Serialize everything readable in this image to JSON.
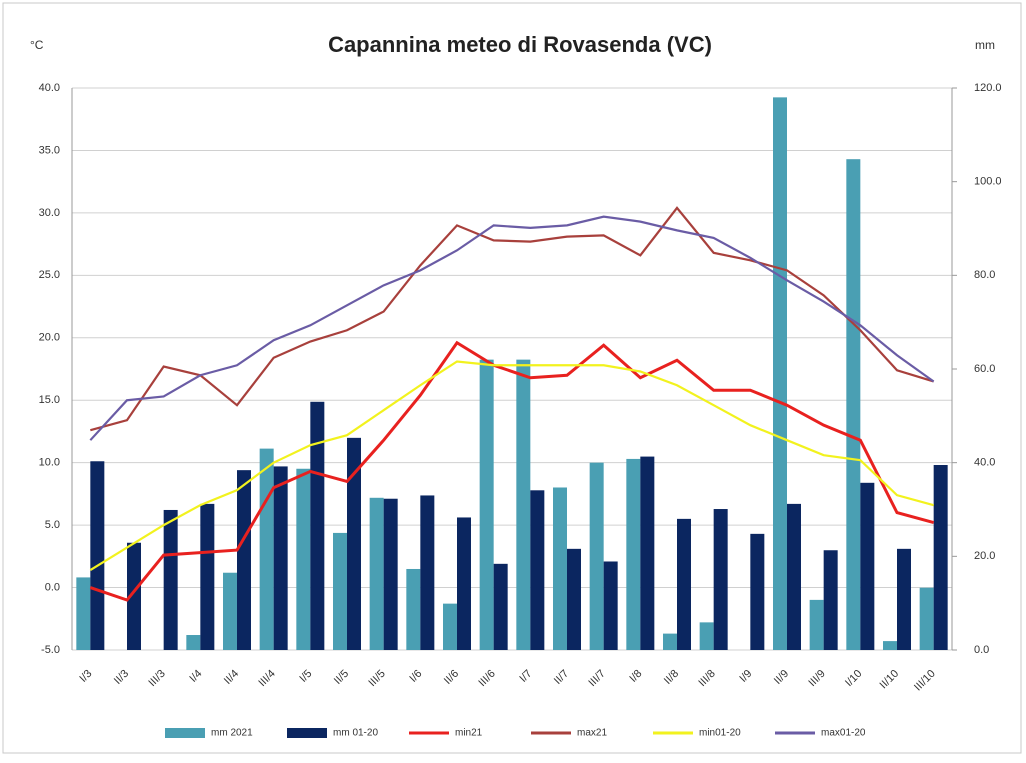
{
  "chart_data": {
    "type": "bar_line",
    "title": "Capannina meteo di Rovasenda (VC)",
    "y_unit": "°C",
    "y2_unit": "mm",
    "categories": [
      "I/3",
      "II/3",
      "III/3",
      "I/4",
      "II/4",
      "III/4",
      "I/5",
      "II/5",
      "III/5",
      "I/6",
      "II/6",
      "III/6",
      "I/7",
      "II/7",
      "III/7",
      "I/8",
      "II/8",
      "III/8",
      "I/9",
      "II/9",
      "III/9",
      "I/10",
      "II/10",
      "III/10"
    ],
    "ylim": [
      -5,
      40
    ],
    "yticks": [
      {
        "value": -5,
        "label": "-5.0"
      },
      {
        "value": 0,
        "label": "0.0"
      },
      {
        "value": 5,
        "label": "5.0"
      },
      {
        "value": 10,
        "label": "10.0"
      },
      {
        "value": 15,
        "label": "15.0"
      },
      {
        "value": 20,
        "label": "20.0"
      },
      {
        "value": 25,
        "label": "25.0"
      },
      {
        "value": 30,
        "label": "30.0"
      },
      {
        "value": 35,
        "label": "35.0"
      },
      {
        "value": 40,
        "label": "40.0"
      }
    ],
    "y2lim": [
      0,
      120
    ],
    "y2ticks": [
      {
        "value": 0,
        "label": "0.0"
      },
      {
        "value": 20,
        "label": "20.0"
      },
      {
        "value": 40,
        "label": "40.0"
      },
      {
        "value": 60,
        "label": "60.0"
      },
      {
        "value": 80,
        "label": "80.0"
      },
      {
        "value": 100,
        "label": "100.0"
      },
      {
        "value": 120,
        "label": "120.0"
      }
    ],
    "grid": true,
    "series": [
      {
        "name": "mm 2021",
        "kind": "bar",
        "axis": "y2",
        "color": "#4a9fb3",
        "values": [
          15.5,
          0,
          0,
          3.2,
          16.5,
          43,
          38.7,
          25,
          32.5,
          17.3,
          9.9,
          62,
          62,
          34.7,
          40,
          40.8,
          3.5,
          5.9,
          0,
          118,
          10.7,
          104.8,
          1.9,
          13.3
        ]
      },
      {
        "name": "mm 01-20",
        "kind": "bar",
        "axis": "y2",
        "color": "#0b2660",
        "values": [
          40.3,
          22.9,
          29.9,
          31.2,
          38.4,
          39.2,
          53,
          45.3,
          32.3,
          33,
          28.3,
          18.4,
          34.1,
          21.6,
          18.9,
          41.3,
          28,
          30.1,
          24.8,
          31.2,
          21.3,
          35.7,
          21.6,
          39.5
        ]
      },
      {
        "name": "min21",
        "kind": "line",
        "color": "#e8211f",
        "values": [
          0.0,
          -1.0,
          2.6,
          2.8,
          3.0,
          8.0,
          9.3,
          8.5,
          11.8,
          15.4,
          19.6,
          17.8,
          16.8,
          17.0,
          19.4,
          16.8,
          18.2,
          15.8,
          15.8,
          14.6,
          13.0,
          11.8,
          6.0,
          5.2
        ]
      },
      {
        "name": "max21",
        "kind": "line",
        "color": "#a8403c",
        "values": [
          12.6,
          13.4,
          17.7,
          17.0,
          14.6,
          18.4,
          19.7,
          20.6,
          22.1,
          25.8,
          29.0,
          27.8,
          27.7,
          28.1,
          28.2,
          26.6,
          30.4,
          26.8,
          26.2,
          25.4,
          23.4,
          20.6,
          17.4,
          16.5
        ]
      },
      {
        "name": "min01-20",
        "kind": "line",
        "color": "#f2f21e",
        "values": [
          1.4,
          3.2,
          5.0,
          6.6,
          7.8,
          10.0,
          11.4,
          12.2,
          14.2,
          16.2,
          18.1,
          17.8,
          17.8,
          17.8,
          17.8,
          17.3,
          16.2,
          14.6,
          13.0,
          11.8,
          10.6,
          10.2,
          7.4,
          6.6
        ]
      },
      {
        "name": "max01-20",
        "kind": "line",
        "color": "#6a5ca5",
        "values": [
          11.8,
          15.0,
          15.3,
          17.0,
          17.8,
          19.8,
          21.0,
          22.6,
          24.2,
          25.4,
          27.0,
          29.0,
          28.8,
          29.0,
          29.7,
          29.3,
          28.6,
          28.0,
          26.4,
          24.6,
          22.9,
          21.0,
          18.6,
          16.5
        ]
      }
    ]
  }
}
